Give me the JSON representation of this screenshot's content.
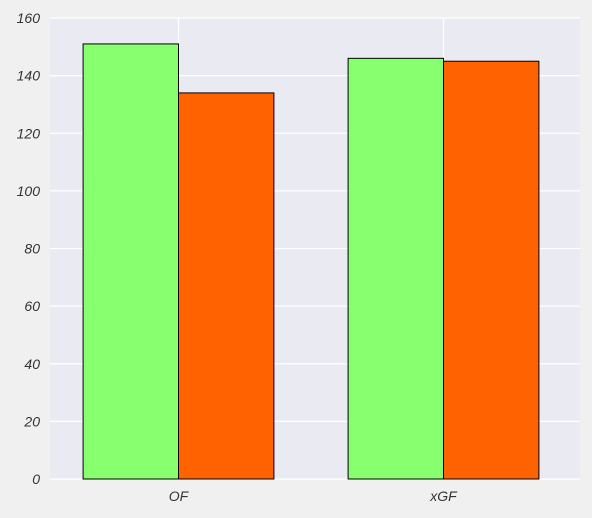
{
  "chart_data": {
    "type": "bar",
    "categories": [
      "OF",
      "xGF"
    ],
    "series": [
      {
        "values": [
          151,
          146
        ],
        "color": "#88ff6e"
      },
      {
        "values": [
          134,
          145
        ],
        "color": "#ff6200"
      }
    ],
    "ylim": [
      0,
      160
    ],
    "yticks": [
      0,
      20,
      40,
      60,
      80,
      100,
      120,
      140,
      160
    ],
    "ytick_labels": [
      "0",
      "20",
      "40",
      "60",
      "80",
      "100",
      "120",
      "140",
      "160"
    ],
    "grid": true,
    "plot_background": "#eaeaf2",
    "page_background": "#f0f0f0",
    "bar_edge_color": "#000000"
  }
}
